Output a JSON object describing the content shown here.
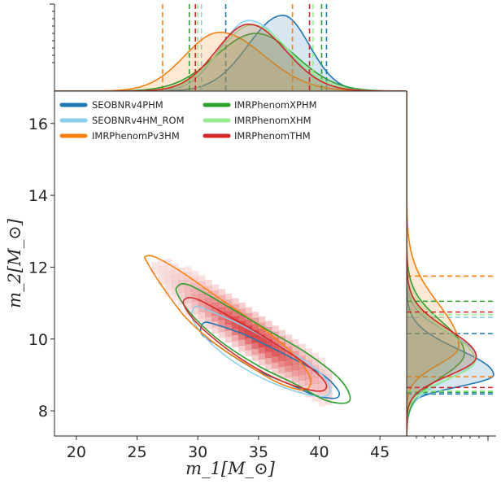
{
  "chart_data": {
    "type": "scatter",
    "subtype": "corner-plot-with-marginals",
    "title": "",
    "xlabel": "m_1[M_⊙]",
    "ylabel": "m_2[M_⊙]",
    "xlim": [
      18.2,
      47.2
    ],
    "ylim": [
      7.3,
      16.9
    ],
    "xticks": [
      20,
      25,
      30,
      35,
      40,
      45
    ],
    "yticks": [
      8,
      10,
      12,
      14,
      16
    ],
    "grid": false,
    "legend_position": "top-left",
    "series": [
      {
        "name": "SEOBNRv4PHM",
        "color": "#1f77b4",
        "m1_interval": [
          32.3,
          40.6
        ],
        "m2_interval": [
          8.47,
          10.15
        ],
        "m1_peak": 37.0,
        "m2_peak": 9.0,
        "contour": [
          [
            30.5,
            10.45
          ],
          [
            31.5,
            10.4
          ],
          [
            34.0,
            10.1
          ],
          [
            37.0,
            9.6
          ],
          [
            39.0,
            9.25
          ],
          [
            40.5,
            8.95
          ],
          [
            41.5,
            8.6
          ],
          [
            41.6,
            8.4
          ],
          [
            41.0,
            8.35
          ],
          [
            39.5,
            8.45
          ],
          [
            37.5,
            8.75
          ],
          [
            35.0,
            9.1
          ],
          [
            33.0,
            9.5
          ],
          [
            31.5,
            9.85
          ],
          [
            30.3,
            10.15
          ]
        ]
      },
      {
        "name": "SEOBNRv4HM_ROM",
        "color": "#89cff0",
        "m1_interval": [
          30.3,
          39.2
        ],
        "m2_interval": [
          8.5,
          10.6
        ],
        "m1_peak": 34.2,
        "m2_peak": 9.5,
        "contour": [
          [
            29.8,
            10.9
          ],
          [
            30.5,
            10.85
          ],
          [
            33.5,
            10.4
          ],
          [
            36.5,
            9.85
          ],
          [
            39.0,
            9.35
          ],
          [
            40.5,
            8.9
          ],
          [
            40.9,
            8.55
          ],
          [
            40.3,
            8.4
          ],
          [
            38.5,
            8.5
          ],
          [
            36.0,
            8.8
          ],
          [
            33.5,
            9.25
          ],
          [
            31.5,
            9.75
          ],
          [
            30.0,
            10.3
          ],
          [
            29.5,
            10.65
          ]
        ]
      },
      {
        "name": "IMRPhenomPv3HM",
        "color": "#ff7f0e",
        "m1_interval": [
          27.1,
          37.8
        ],
        "m2_interval": [
          8.95,
          11.75
        ],
        "m1_peak": 31.8,
        "m2_peak": 9.8,
        "contour": [
          [
            25.7,
            12.3
          ],
          [
            26.5,
            12.28
          ],
          [
            28.5,
            11.9
          ],
          [
            31.5,
            11.2
          ],
          [
            34.5,
            10.5
          ],
          [
            37.0,
            9.85
          ],
          [
            38.8,
            9.2
          ],
          [
            39.3,
            8.78
          ],
          [
            38.6,
            8.58
          ],
          [
            36.5,
            8.8
          ],
          [
            34.0,
            9.3
          ],
          [
            31.5,
            9.85
          ],
          [
            29.0,
            10.6
          ],
          [
            27.0,
            11.5
          ],
          [
            25.8,
            12.15
          ]
        ]
      },
      {
        "name": "IMRPhenomXPHM",
        "color": "#2ca02c",
        "m1_interval": [
          29.3,
          40.2
        ],
        "m2_interval": [
          8.52,
          11.05
        ],
        "m1_peak": 34.8,
        "m2_peak": 9.6,
        "contour": [
          [
            28.3,
            11.45
          ],
          [
            29.3,
            11.5
          ],
          [
            32.5,
            10.9
          ],
          [
            36.0,
            10.2
          ],
          [
            39.0,
            9.6
          ],
          [
            41.5,
            8.95
          ],
          [
            42.5,
            8.45
          ],
          [
            42.2,
            8.22
          ],
          [
            40.5,
            8.3
          ],
          [
            38.0,
            8.75
          ],
          [
            35.0,
            9.25
          ],
          [
            32.0,
            9.9
          ],
          [
            29.7,
            10.6
          ],
          [
            28.4,
            11.2
          ]
        ]
      },
      {
        "name": "IMRPhenomXHM",
        "color": "#98ec8f",
        "m1_interval": [
          30.0,
          39.5
        ],
        "m2_interval": [
          8.55,
          10.68
        ],
        "m1_peak": 34.5,
        "m2_peak": 9.4,
        "contour": []
      },
      {
        "name": "IMRPhenomTHM",
        "color": "#d62728",
        "m1_interval": [
          29.8,
          39.2
        ],
        "m2_interval": [
          8.65,
          10.75
        ],
        "m1_peak": 34.2,
        "m2_peak": 9.5,
        "contour": [
          [
            28.9,
            11.1
          ],
          [
            30.0,
            11.1
          ],
          [
            33.0,
            10.55
          ],
          [
            36.0,
            9.95
          ],
          [
            38.5,
            9.4
          ],
          [
            40.2,
            8.92
          ],
          [
            40.6,
            8.65
          ],
          [
            39.8,
            8.55
          ],
          [
            37.5,
            8.75
          ],
          [
            35.0,
            9.15
          ],
          [
            32.5,
            9.7
          ],
          [
            30.2,
            10.35
          ],
          [
            29.0,
            10.85
          ]
        ]
      }
    ],
    "density_histogram": {
      "color": "#d62728",
      "x_bin_width": 0.55,
      "y_bin_width": 0.17,
      "ridge": {
        "x_start": 26.2,
        "x_end": 40.5,
        "y_start": 11.9,
        "y_end": 8.6,
        "x_center": 34.4,
        "y_center": 9.62
      }
    }
  }
}
